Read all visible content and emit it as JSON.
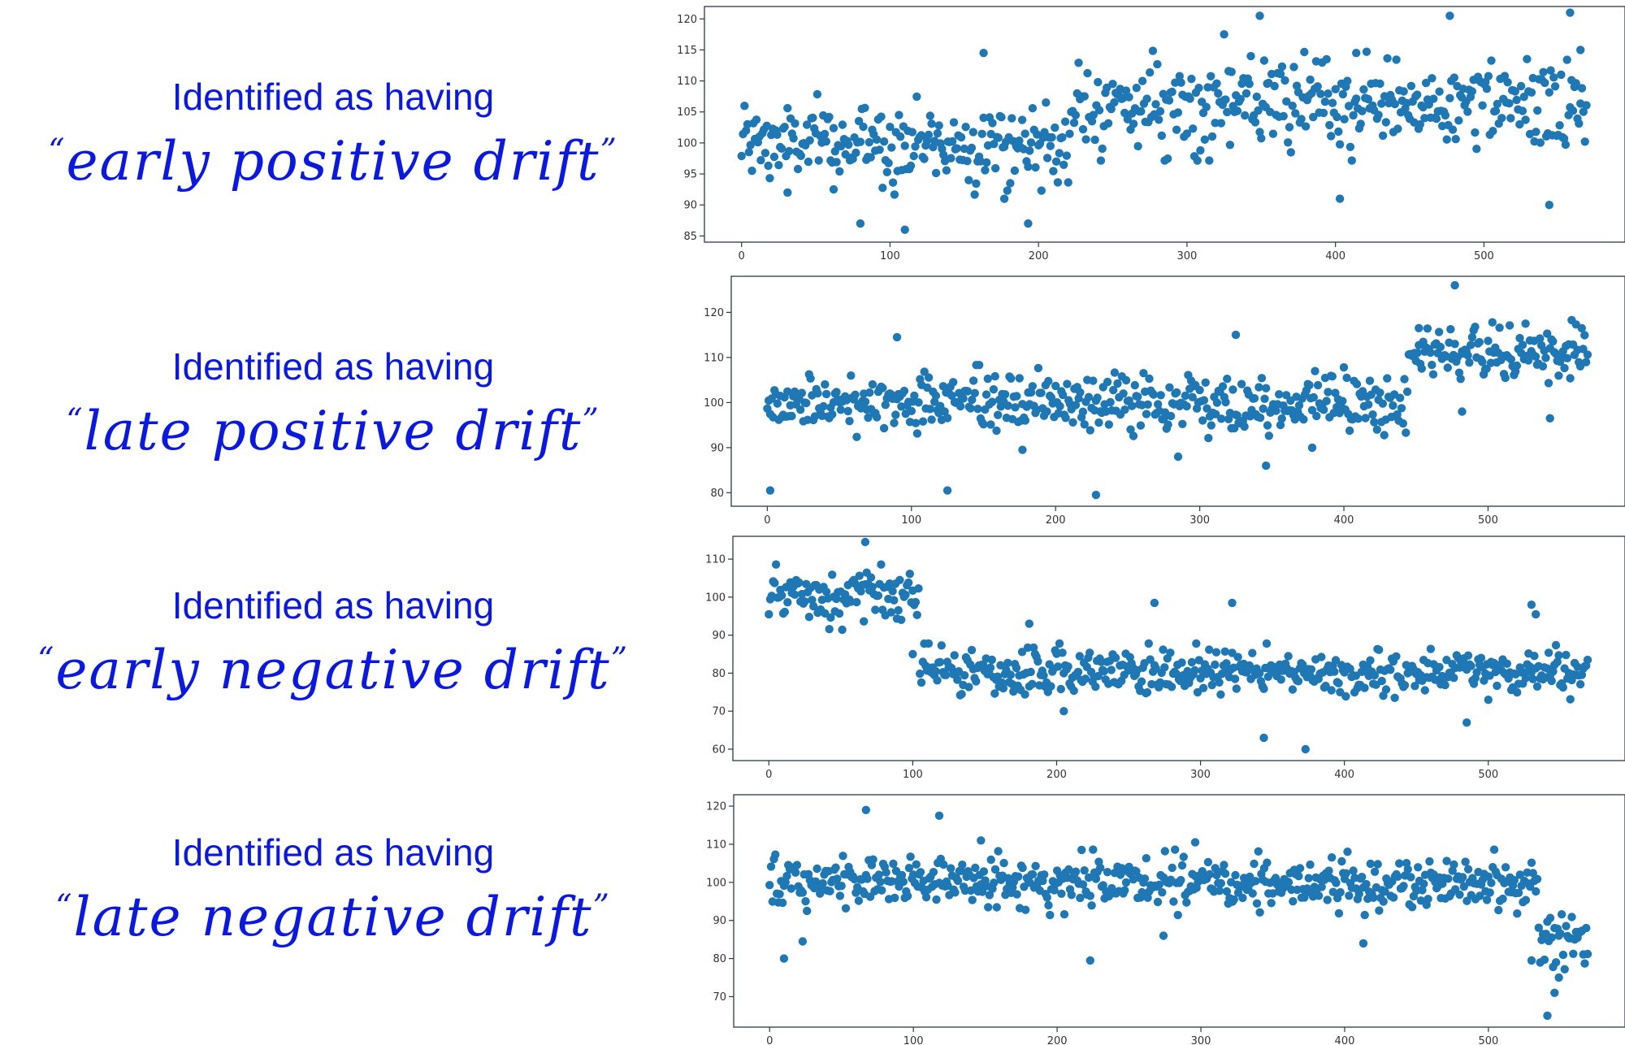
{
  "captions": [
    {
      "line1": "Identified as having",
      "open_quote": "“",
      "line2": "early positive drift",
      "close_quote": "”"
    },
    {
      "line1": "Identified as having",
      "open_quote": "“",
      "line2": "late positive drift",
      "close_quote": "”"
    },
    {
      "line1": "Identified as having",
      "open_quote": "“",
      "line2": "early negative drift",
      "close_quote": "”"
    },
    {
      "line1": "Identified as having",
      "open_quote": "“",
      "line2": "late negative drift",
      "close_quote": "”"
    }
  ],
  "colors": {
    "caption": "#0a18e0",
    "points": "#1f77b4"
  },
  "chart_data": [
    {
      "type": "scatter",
      "title": "",
      "xlabel": "",
      "ylabel": "",
      "xlim": [
        -25,
        595
      ],
      "ylim": [
        84,
        122
      ],
      "xticks": [
        0,
        100,
        200,
        300,
        400,
        500
      ],
      "yticks": [
        85,
        90,
        95,
        100,
        105,
        110,
        115,
        120
      ],
      "series": [
        {
          "n": 570,
          "regimes": [
            {
              "from": 0,
              "to": 225,
              "mean": 100,
              "sd": 3.2
            },
            {
              "from": 225,
              "to": 570,
              "mean": 106,
              "sd": 3.4
            }
          ],
          "outliers": [
            [
              31,
              92
            ],
            [
              62,
              92.5
            ],
            [
              80,
              87
            ],
            [
              110,
              86
            ],
            [
              163,
              114.5
            ],
            [
              177,
              91
            ],
            [
              193,
              87
            ],
            [
              325,
              117.5
            ],
            [
              349,
              120.5
            ],
            [
              403,
              91
            ],
            [
              414,
              114.5
            ],
            [
              477,
              120.5
            ],
            [
              544,
              90
            ],
            [
              558,
              121
            ],
            [
              565,
              115
            ]
          ]
        }
      ],
      "grid": false,
      "legend": "none"
    },
    {
      "type": "scatter",
      "title": "",
      "xlabel": "",
      "ylabel": "",
      "xlim": [
        -25,
        595
      ],
      "ylim": [
        77,
        128
      ],
      "xticks": [
        0,
        100,
        200,
        300,
        400,
        500
      ],
      "yticks": [
        80,
        90,
        100,
        110,
        120
      ],
      "series": [
        {
          "n": 570,
          "regimes": [
            {
              "from": 0,
              "to": 445,
              "mean": 100,
              "sd": 3.2
            },
            {
              "from": 445,
              "to": 570,
              "mean": 111,
              "sd": 3.0
            }
          ],
          "outliers": [
            [
              2,
              80.5
            ],
            [
              90,
              114.5
            ],
            [
              125,
              80.5
            ],
            [
              177,
              89.5
            ],
            [
              228,
              79.5
            ],
            [
              285,
              88
            ],
            [
              325,
              115
            ],
            [
              346,
              86
            ],
            [
              378,
              90
            ],
            [
              452,
              116.5
            ],
            [
              477,
              126
            ],
            [
              482,
              98
            ],
            [
              543,
              96.5
            ]
          ]
        }
      ],
      "grid": false,
      "legend": "none"
    },
    {
      "type": "scatter",
      "title": "",
      "xlabel": "",
      "ylabel": "",
      "xlim": [
        -25,
        595
      ],
      "ylim": [
        57,
        116
      ],
      "xticks": [
        0,
        100,
        200,
        300,
        400,
        500
      ],
      "yticks": [
        60,
        70,
        80,
        90,
        100,
        110
      ],
      "series": [
        {
          "n": 570,
          "regimes": [
            {
              "from": 0,
              "to": 105,
              "mean": 100,
              "sd": 3.3
            },
            {
              "from": 105,
              "to": 570,
              "mean": 80,
              "sd": 3.0
            }
          ],
          "outliers": [
            [
              67,
              114.5
            ],
            [
              100,
              85
            ],
            [
              181,
              93
            ],
            [
              205,
              70
            ],
            [
              268,
              98.5
            ],
            [
              322,
              98.5
            ],
            [
              344,
              63
            ],
            [
              373,
              60
            ],
            [
              485,
              67
            ],
            [
              530,
              98
            ],
            [
              533,
              95.5
            ]
          ]
        }
      ],
      "grid": false,
      "legend": "none"
    },
    {
      "type": "scatter",
      "title": "",
      "xlabel": "",
      "ylabel": "",
      "xlim": [
        -25,
        595
      ],
      "ylim": [
        62,
        123
      ],
      "xticks": [
        0,
        100,
        200,
        300,
        400,
        500
      ],
      "yticks": [
        70,
        80,
        90,
        100,
        110,
        120
      ],
      "series": [
        {
          "n": 570,
          "regimes": [
            {
              "from": 0,
              "to": 535,
              "mean": 100,
              "sd": 3.3
            },
            {
              "from": 535,
              "to": 570,
              "mean": 85,
              "sd": 3.5
            }
          ],
          "outliers": [
            [
              10,
              80
            ],
            [
              23,
              84.5
            ],
            [
              67,
              119
            ],
            [
              118,
              117.5
            ],
            [
              147,
              111
            ],
            [
              223,
              79.5
            ],
            [
              274,
              86
            ],
            [
              296,
              110.5
            ],
            [
              413,
              84
            ],
            [
              530,
              79.5
            ],
            [
              541,
              65
            ],
            [
              546,
              71
            ],
            [
              549,
              75
            ]
          ]
        }
      ],
      "grid": false,
      "legend": "none"
    }
  ]
}
